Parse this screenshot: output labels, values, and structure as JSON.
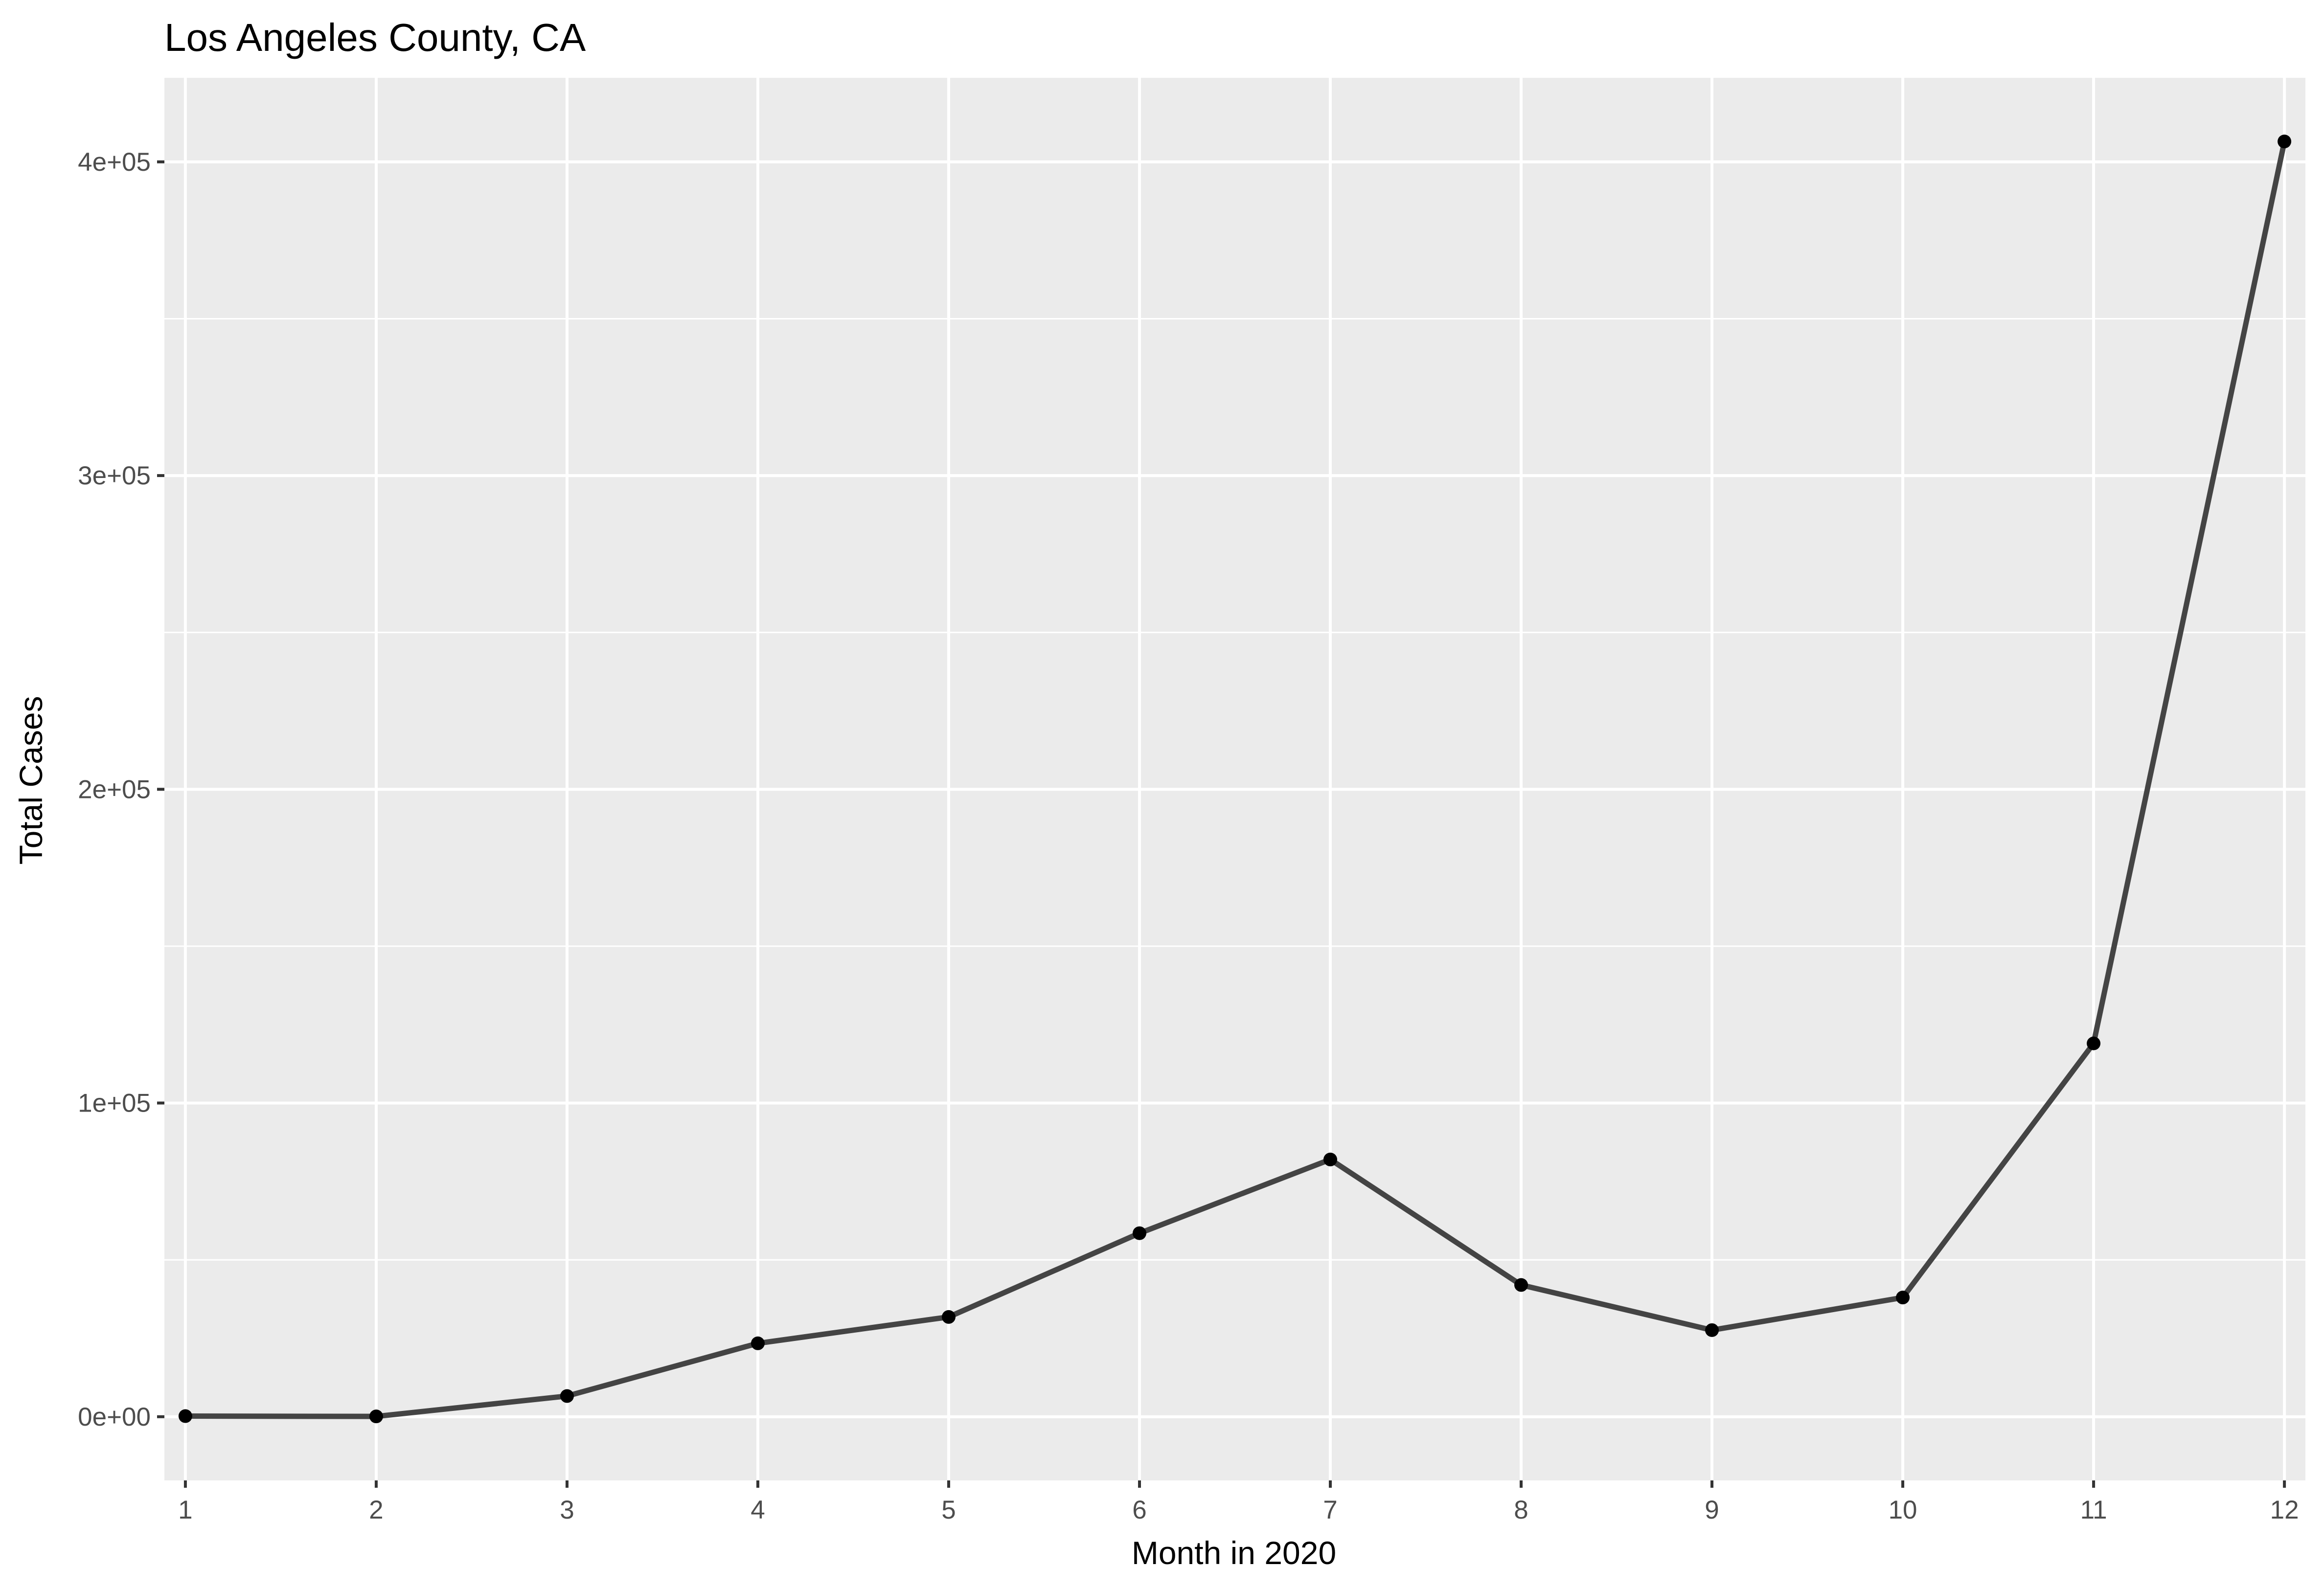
{
  "chart_data": {
    "type": "line",
    "title": "Los Angeles County, CA",
    "xlabel": "Month in 2020",
    "ylabel": "Total Cases",
    "x": [
      1,
      2,
      3,
      4,
      5,
      6,
      7,
      8,
      9,
      10,
      11,
      12
    ],
    "x_tick_labels": [
      "1",
      "2",
      "3",
      "4",
      "5",
      "6",
      "7",
      "8",
      "9",
      "10",
      "11",
      "12"
    ],
    "series": [
      {
        "values": [
          200,
          100,
          6600,
          23400,
          31800,
          58500,
          82000,
          42000,
          27600,
          38000,
          119000,
          406500
        ],
        "color": "#444444",
        "point_color": "#000000"
      }
    ],
    "xlim": [
      0.89,
      12.11
    ],
    "ylim": [
      -20300,
      426800
    ],
    "y_ticks": [
      0,
      100000,
      200000,
      300000,
      400000
    ],
    "y_tick_labels": [
      "0e+00",
      "1e+05",
      "2e+05",
      "3e+05",
      "4e+05"
    ],
    "grid": true,
    "legend": "none",
    "panel_background": "#ebebeb",
    "gridline_color": "#ffffff"
  }
}
